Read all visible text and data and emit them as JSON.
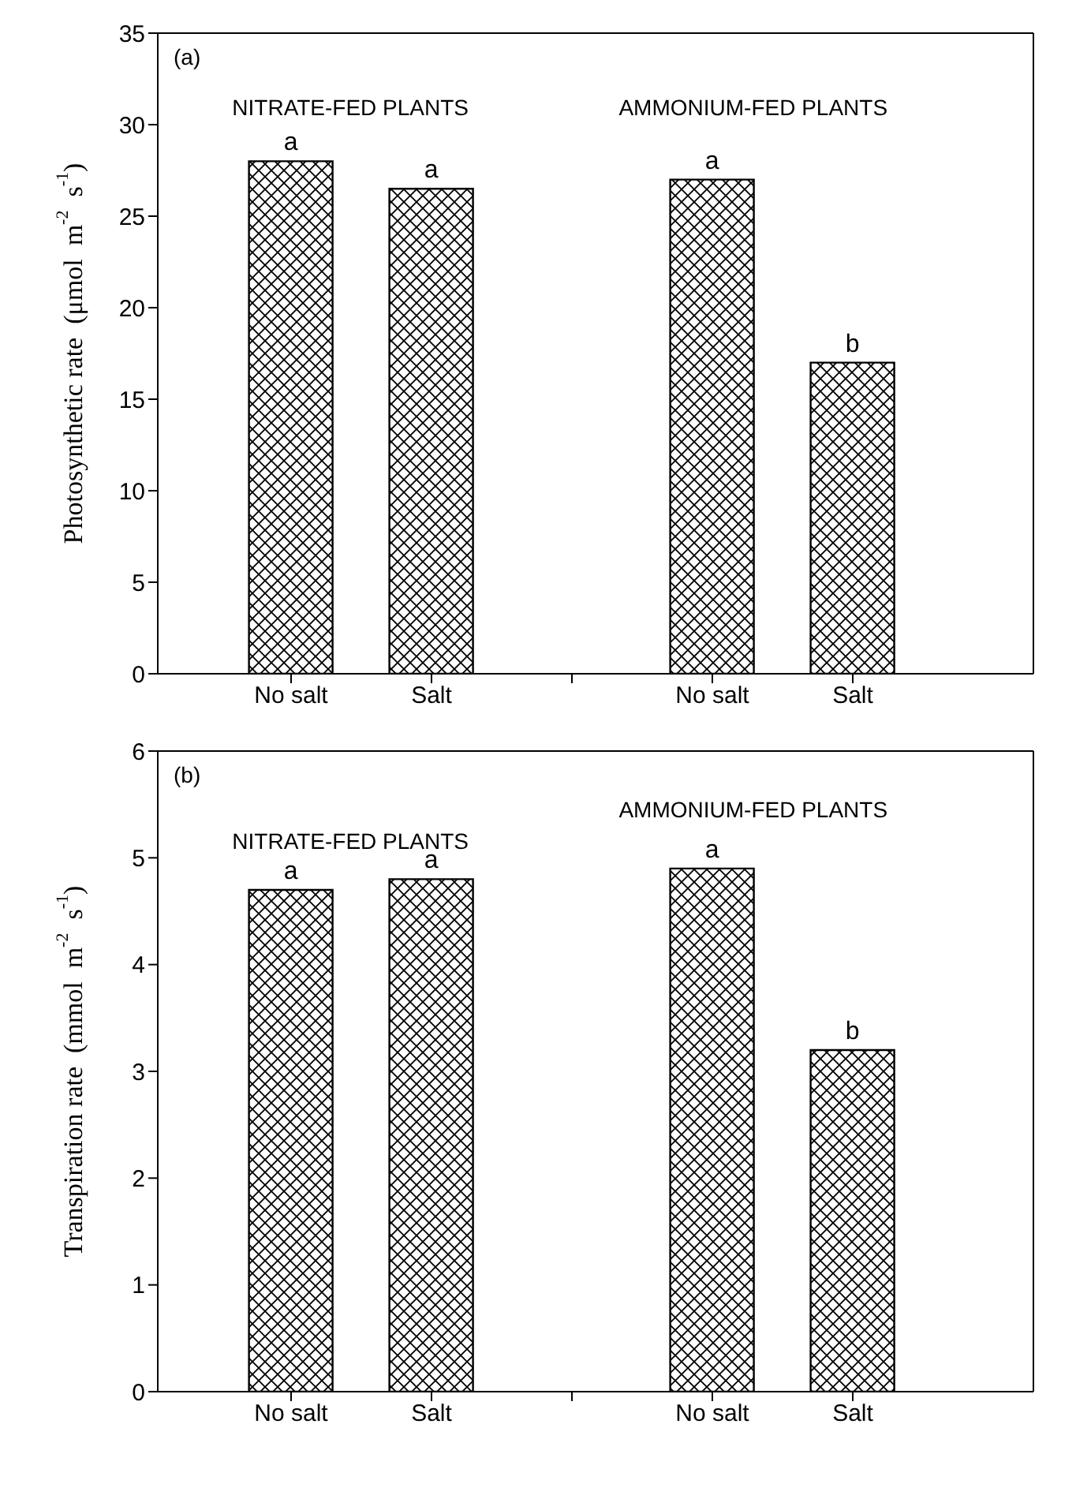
{
  "chart_data": [
    {
      "type": "bar",
      "title": "(a)",
      "ylabel": "Photosynthetic rate  (μmol  m$^{-2}$  s$^{-1}$)",
      "categories": [
        "No salt",
        "Salt",
        null,
        "No salt",
        "Salt"
      ],
      "values": [
        28,
        26.5,
        null,
        27,
        17
      ],
      "value_labels": [
        "a",
        "a",
        null,
        "a",
        "b"
      ],
      "color": "#000000",
      "ylim": [
        0,
        35
      ],
      "yticks": [
        0,
        5,
        10,
        15,
        20,
        25,
        30,
        35
      ],
      "grid": false,
      "legend": false,
      "annotations": [
        "NITRATE-FED PLANTS",
        "AMMONIUM-FED PLANTS"
      ]
    },
    {
      "type": "bar",
      "title": "(b)",
      "ylabel": "Transpiration rate  (mmol  m$^{-2}$  s$^{-1}$)",
      "categories": [
        "No salt",
        "Salt",
        null,
        "No salt",
        "Salt"
      ],
      "values": [
        4.7,
        4.8,
        null,
        4.9,
        3.2
      ],
      "value_labels": [
        "a",
        "a",
        null,
        "a",
        "b"
      ],
      "color": "#000000",
      "ylim": [
        0,
        6
      ],
      "yticks": [
        0,
        1,
        2,
        3,
        4,
        5,
        6
      ],
      "grid": false,
      "legend": false,
      "annotations": [
        "NITRATE-FED PLANTS",
        "AMMONIUM-FED PLANTS"
      ]
    }
  ]
}
